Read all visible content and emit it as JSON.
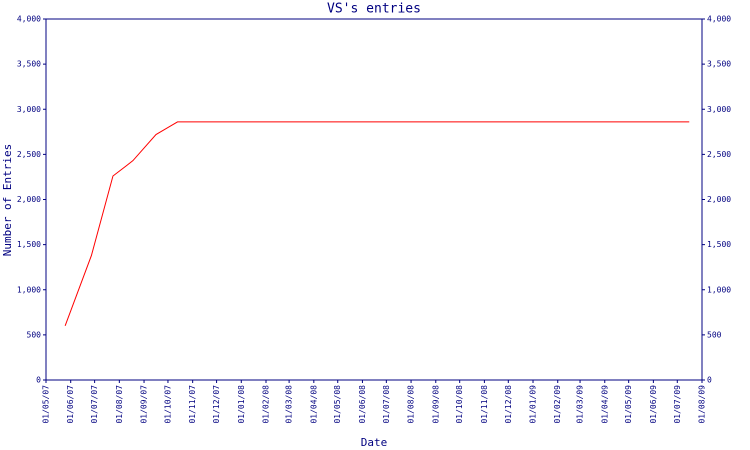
{
  "chart_data": {
    "type": "line",
    "title": "VS's entries",
    "x_label": "Date",
    "y_label": "Number of Entries",
    "x": [
      "25/05/07",
      "27/06/07",
      "24/07/07",
      "18/08/07",
      "16/09/07",
      "13/10/07",
      "16/07/09"
    ],
    "series": [
      {
        "name": "VS",
        "color": "#ff0000",
        "values": [
          600,
          1380,
          2260,
          2430,
          2720,
          2860,
          2860
        ]
      }
    ],
    "xlim": [
      "01/05/07",
      "01/08/09"
    ],
    "xticks": [
      "01/05/07",
      "01/06/07",
      "01/07/07",
      "01/08/07",
      "01/09/07",
      "01/10/07",
      "01/11/07",
      "01/12/07",
      "01/01/08",
      "01/02/08",
      "01/03/08",
      "01/04/08",
      "01/05/08",
      "01/06/08",
      "01/07/08",
      "01/08/08",
      "01/09/08",
      "01/10/08",
      "01/11/08",
      "01/12/08",
      "01/01/09",
      "01/02/09",
      "01/03/09",
      "01/04/09",
      "01/05/09",
      "01/06/09",
      "01/07/09",
      "01/08/09"
    ],
    "ylim": [
      0,
      4000
    ],
    "yticks": [
      0,
      500,
      {
        "value": 1000,
        "label": "1,000"
      },
      {
        "value": 1500,
        "label": "1,500"
      },
      {
        "value": 2000,
        "label": "2,000"
      },
      {
        "value": 2500,
        "label": "2,500"
      },
      {
        "value": 3000,
        "label": "3,000"
      },
      {
        "value": 3500,
        "label": "3,500"
      },
      {
        "value": 4000,
        "label": "4,000"
      }
    ],
    "y2lim": [
      0,
      4000
    ],
    "y2ticks": [
      0,
      500,
      {
        "value": 1000,
        "label": "1,000"
      },
      {
        "value": 1500,
        "label": "1,500"
      },
      {
        "value": 2000,
        "label": "2,000"
      },
      {
        "value": 2500,
        "label": "2,500"
      },
      {
        "value": 3000,
        "label": "3,000"
      },
      {
        "value": 3500,
        "label": "3,500"
      },
      {
        "value": 4000,
        "label": "4,000"
      }
    ],
    "axis_color": "#000080",
    "grid": false
  }
}
